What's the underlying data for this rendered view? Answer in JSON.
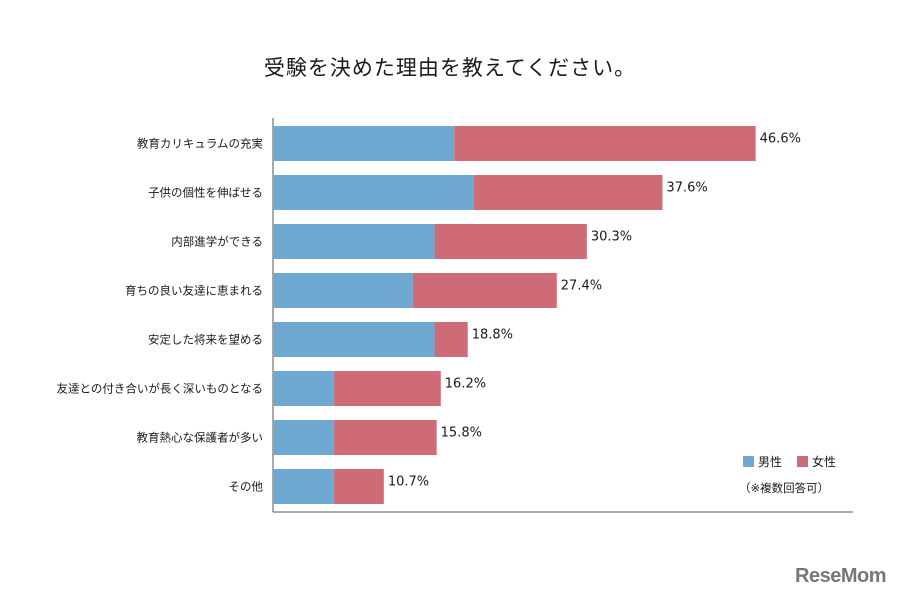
{
  "chart_data": {
    "type": "bar",
    "orientation": "horizontal",
    "stacked": true,
    "title": "受験を決めた理由を教えてください。",
    "categories": [
      "教育カリキュラムの充実",
      "子供の個性を伸ばせる",
      "内部進学ができる",
      "育ちの良い友達に恵まれる",
      "安定した将来を望める",
      "友達との付き合いが長く深いものとなる",
      "教育熱心な保護者が多い",
      "その他"
    ],
    "series": [
      {
        "name": "男性",
        "color": "#6fa8d0",
        "values": [
          17.5,
          19.4,
          15.6,
          13.5,
          15.6,
          5.9,
          5.9,
          5.9
        ]
      },
      {
        "name": "女性",
        "color": "#cf6b76",
        "values": [
          29.1,
          18.2,
          14.7,
          13.9,
          3.2,
          10.3,
          9.9,
          4.8
        ]
      }
    ],
    "totals": [
      46.6,
      37.6,
      30.3,
      27.4,
      18.8,
      16.2,
      15.8,
      10.7
    ],
    "total_labels": [
      "46.6%",
      "37.6%",
      "30.3%",
      "27.4%",
      "18.8%",
      "16.2%",
      "15.8%",
      "10.7%"
    ],
    "xlim": [
      0,
      56
    ],
    "grid": false,
    "legend_position": "bottom-right",
    "note": "（※複数回答可）"
  },
  "brand": {
    "logo_text": "ReseMom"
  }
}
